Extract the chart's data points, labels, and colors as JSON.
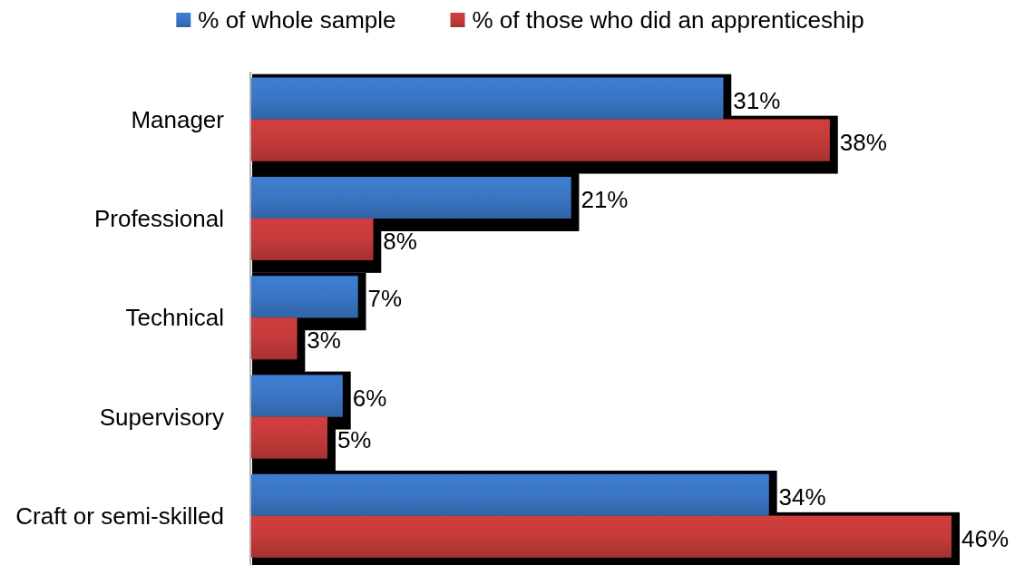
{
  "chart_data": {
    "type": "bar",
    "orientation": "horizontal",
    "legend": "top",
    "categories": [
      "Manager",
      "Professional",
      "Technical",
      "Supervisory",
      "Craft or semi-skilled"
    ],
    "series": [
      {
        "name": "% of whole sample",
        "color": "#3a75c4",
        "values": [
          31,
          21,
          7,
          6,
          34
        ],
        "value_labels": [
          "31%",
          "21%",
          "7%",
          "6%",
          "34%"
        ]
      },
      {
        "name": "% of those who did an apprenticeship",
        "color": "#c43a3a",
        "values": [
          38,
          8,
          3,
          5,
          46
        ],
        "value_labels": [
          "38%",
          "8%",
          "3%",
          "5%",
          "46%"
        ]
      }
    ]
  }
}
